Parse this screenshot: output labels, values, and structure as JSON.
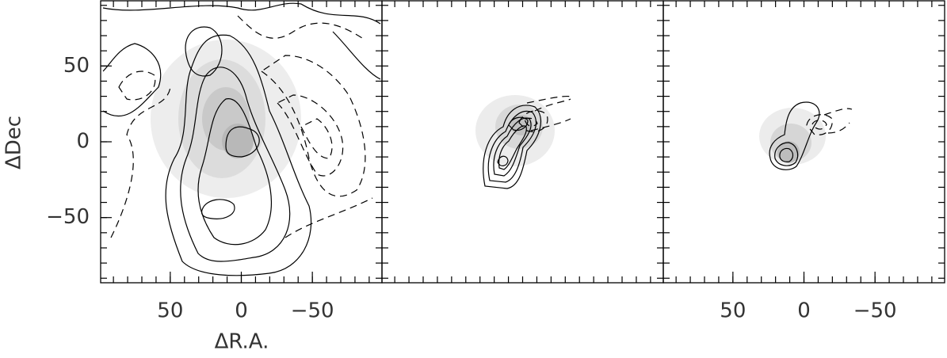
{
  "chart_data": [
    {
      "type": "contour",
      "xlabel": "ΔR.A.",
      "ylabel": "ΔDec",
      "xlim": [
        99,
        -99
      ],
      "ylim": [
        -93,
        93
      ],
      "xticks": [
        50,
        0,
        {
          "value": -50,
          "label": "−50"
        }
      ],
      "yticks": [
        50,
        0,
        {
          "value": -50,
          "label": "−50"
        }
      ],
      "x_tick_marks": [
        90,
        80,
        70,
        60,
        50,
        40,
        30,
        20,
        10,
        0,
        -10,
        -20,
        -30,
        -40,
        -50,
        -60,
        -70,
        -80,
        -90
      ],
      "y_tick_marks": [
        90,
        80,
        70,
        60,
        50,
        40,
        30,
        20,
        10,
        0,
        -10,
        -20,
        -30,
        -40,
        -50,
        -60,
        -70,
        -80,
        -90
      ]
    },
    {
      "type": "contour",
      "xlim": [
        99,
        -99
      ],
      "ylim": [
        -93,
        93
      ],
      "x_tick_marks": [
        90,
        80,
        70,
        60,
        50,
        40,
        30,
        20,
        10,
        0,
        -10,
        -20,
        -30,
        -40,
        -50,
        -60,
        -70,
        -80,
        -90
      ],
      "y_tick_marks": [
        90,
        80,
        70,
        60,
        50,
        40,
        30,
        20,
        10,
        0,
        -10,
        -20,
        -30,
        -40,
        -50,
        -60,
        -70,
        -80,
        -90
      ]
    },
    {
      "type": "contour",
      "xlim": [
        99,
        -99
      ],
      "ylim": [
        -93,
        93
      ],
      "xticks": [
        50,
        0,
        {
          "value": -50,
          "label": "−50"
        }
      ],
      "x_tick_marks": [
        90,
        80,
        70,
        60,
        50,
        40,
        30,
        20,
        10,
        0,
        -10,
        -20,
        -30,
        -40,
        -50,
        -60,
        -70,
        -80,
        -90
      ],
      "y_tick_marks": [
        90,
        80,
        70,
        60,
        50,
        40,
        30,
        20,
        10,
        0,
        -10,
        -20,
        -30,
        -40,
        -50,
        -60,
        -70,
        -80,
        -90
      ]
    }
  ]
}
